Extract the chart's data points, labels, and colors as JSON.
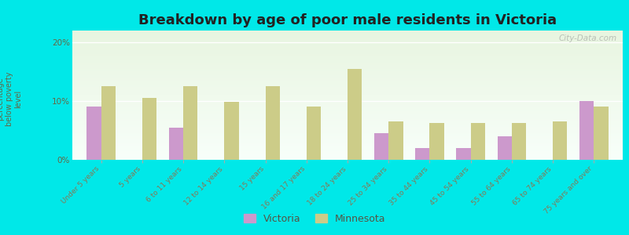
{
  "title": "Breakdown by age of poor male residents in Victoria",
  "ylabel": "percentage\nbelow poverty\nlevel",
  "categories": [
    "Under 5 years",
    "5 years",
    "6 to 11 years",
    "12 to 14 years",
    "15 years",
    "16 and 17 years",
    "18 to 24 years",
    "25 to 34 years",
    "35 to 44 years",
    "45 to 54 years",
    "55 to 64 years",
    "65 to 74 years",
    "75 years and over"
  ],
  "victoria_values": [
    9.0,
    0.0,
    5.5,
    0.0,
    0.0,
    0.0,
    0.0,
    4.5,
    2.0,
    2.0,
    4.0,
    0.0,
    10.0
  ],
  "minnesota_values": [
    12.5,
    10.5,
    12.5,
    9.8,
    12.5,
    9.0,
    15.5,
    6.5,
    6.2,
    6.2,
    6.2,
    6.5,
    9.0
  ],
  "victoria_color": "#cc99cc",
  "minnesota_color": "#cccc88",
  "background_top": "#f0f8f0",
  "background_bottom": "#c8e8c0",
  "outer_bg": "#00e8e8",
  "ylim": [
    0,
    22
  ],
  "yticks": [
    0,
    10,
    20
  ],
  "ytick_labels": [
    "0%",
    "10%",
    "20%"
  ],
  "bar_width": 0.35,
  "title_fontsize": 13,
  "label_fontsize": 7.5,
  "watermark": "City-Data.com"
}
